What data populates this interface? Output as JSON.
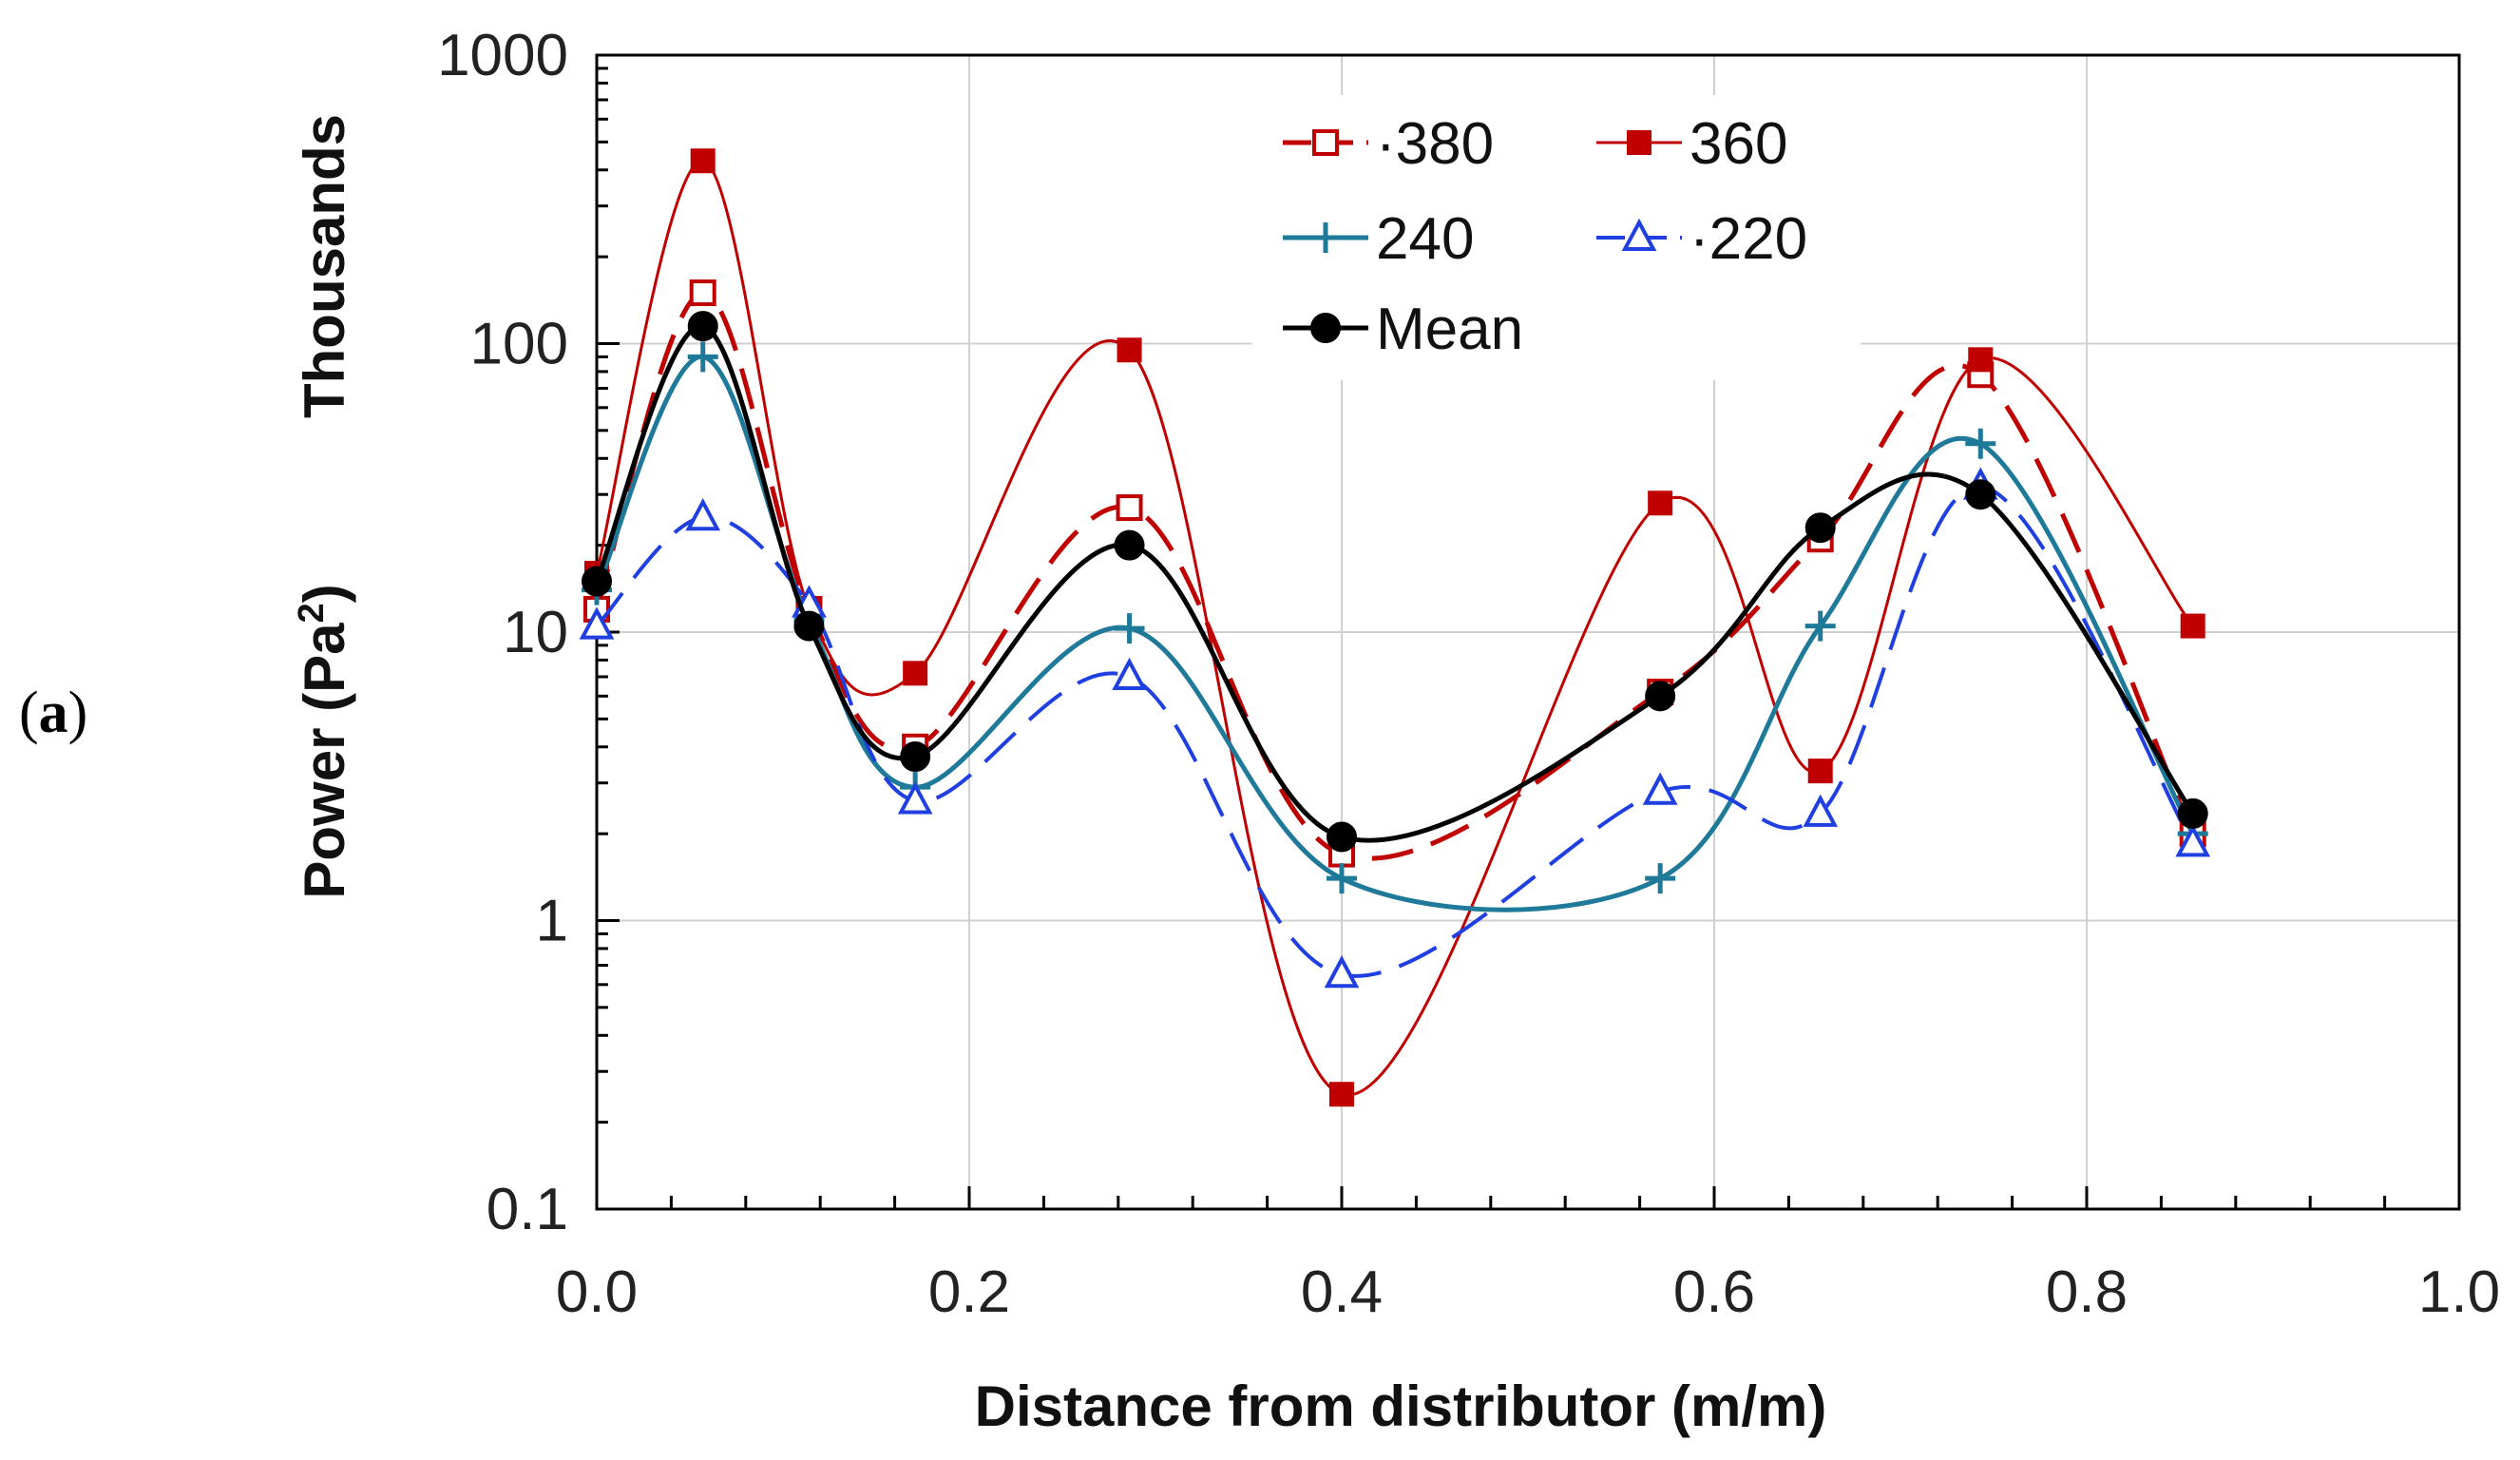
{
  "panel_label": {
    "open": "(",
    "letter": "a",
    "close": ")"
  },
  "colors": {
    "s380": "#c00000",
    "s360": "#c00000",
    "s240": "#1f7a9a",
    "s220": "#1f3fe0",
    "mean": "#000000",
    "grid": "#d0d0d0",
    "axis": "#000000"
  },
  "chart_data": {
    "type": "line",
    "xlabel": "Distance from distributor (m/m)",
    "ylabel_main": "Power (Pa",
    "ylabel_sup": "2",
    "ylabel_close": ")",
    "ylabel_units": "Thousands",
    "yscale": "log",
    "xlim": [
      0,
      1
    ],
    "ylim": [
      0.1,
      1000
    ],
    "x_ticks": [
      0,
      0.2,
      0.4,
      0.6,
      0.8,
      1.0
    ],
    "x_tick_labels": [
      "0.0",
      "0.2",
      "0.4",
      "0.6",
      "0.8",
      "1.0"
    ],
    "y_ticks": [
      0.1,
      1,
      10,
      100,
      1000
    ],
    "y_tick_labels": [
      "0.1",
      "1",
      "10",
      "100",
      "1000"
    ],
    "grid": true,
    "legend_position": "top-center",
    "x": [
      0.0,
      0.057,
      0.114,
      0.171,
      0.286,
      0.4,
      0.571,
      0.657,
      0.743,
      0.857
    ],
    "series": [
      {
        "name": "380",
        "legend_label": "·380",
        "color_key": "s380",
        "marker": "open-square",
        "dash": "long-dash",
        "stroke_width": 5,
        "values": [
          12,
          150,
          12,
          4,
          27,
          1.7,
          6.2,
          21,
          78,
          2.0
        ]
      },
      {
        "name": "360",
        "legend_label": "360",
        "color_key": "s360",
        "marker": "filled-square",
        "dash": "solid",
        "stroke_width": 3,
        "values": [
          16,
          430,
          12,
          7.2,
          95,
          0.25,
          28,
          3.3,
          88,
          10.5
        ]
      },
      {
        "name": "240",
        "legend_label": "240",
        "color_key": "s240",
        "marker": "plus",
        "dash": "solid",
        "stroke_width": 5,
        "values": [
          14,
          90,
          11,
          2.9,
          10.3,
          1.4,
          1.4,
          10.5,
          45,
          2.0
        ]
      },
      {
        "name": "220",
        "legend_label": "·220",
        "color_key": "s220",
        "marker": "open-triangle",
        "dash": "long-dash",
        "stroke_width": 4,
        "values": [
          10.5,
          25,
          12.5,
          2.6,
          7.0,
          0.65,
          2.8,
          2.35,
          32,
          1.85
        ]
      },
      {
        "name": "Mean",
        "legend_label": "Mean",
        "color_key": "mean",
        "marker": "filled-circle",
        "dash": "solid",
        "stroke_width": 5,
        "values": [
          15,
          115,
          10.5,
          3.7,
          20,
          1.95,
          6.0,
          23,
          30,
          2.35
        ]
      }
    ]
  }
}
